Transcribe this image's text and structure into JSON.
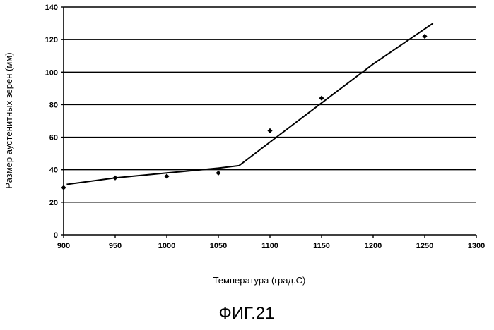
{
  "chart_data": {
    "type": "scatter",
    "title": "",
    "xlabel": "Температура (град.С)",
    "ylabel": "Размер аустенитных зерен (мм)",
    "xlim": [
      900,
      1300
    ],
    "ylim": [
      0,
      140
    ],
    "x_ticks": [
      900,
      950,
      1000,
      1050,
      1100,
      1150,
      1200,
      1250,
      1300
    ],
    "y_ticks": [
      0,
      20,
      40,
      60,
      80,
      100,
      120,
      140
    ],
    "grid": "horizontal",
    "legend": "none",
    "series": [
      {
        "type": "scatter",
        "x": [
          900,
          950,
          1000,
          1050,
          1100,
          1150,
          1250
        ],
        "y": [
          29,
          35,
          36,
          38,
          64,
          84,
          122
        ]
      },
      {
        "type": "line",
        "x": [
          903,
          950,
          1000,
          1050,
          1070,
          1100,
          1150,
          1200,
          1258
        ],
        "y": [
          31,
          35,
          38,
          41,
          42.5,
          57,
          81,
          105,
          130
        ]
      }
    ]
  },
  "figure": {
    "caption": "ФИГ.21"
  },
  "colors": {
    "line": "#000000",
    "grid": "#000000",
    "text": "#000000",
    "background": "#ffffff"
  }
}
